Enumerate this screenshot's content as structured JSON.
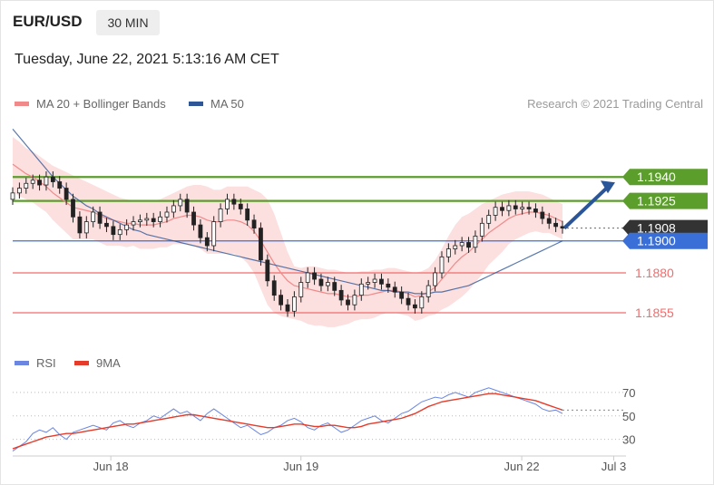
{
  "header": {
    "pair": "EUR/USD",
    "timeframe": "30 MIN"
  },
  "datetime": "Tuesday, June 22, 2021 5:13:16 AM CET",
  "legend": {
    "bollinger_label": "MA 20 + Bollinger Bands",
    "ma50_label": "MA 50",
    "credit": "Research © 2021 Trading Central"
  },
  "colors": {
    "bollinger": "#f08a8a",
    "band_fill": "#fbd9d9",
    "ma50": "#2f5797",
    "resistance": "#5c9e2c",
    "pivot": "#3b6fd8",
    "support": "#f26c6c",
    "arrow": "#2a5598",
    "rsi": "#6a86e0",
    "rsi_ma": "#e43b2a"
  },
  "chart_data": [
    {
      "type": "candlestick",
      "ylim": [
        1.1838,
        1.1977
      ],
      "xlim": [
        0,
        100
      ],
      "x_ticks": [
        {
          "label": "Jun 18",
          "x": 16
        },
        {
          "label": "Jun 19",
          "x": 47
        },
        {
          "label": "Jun 22",
          "x": 83
        },
        {
          "label": "Jul 3",
          "x": 98
        }
      ],
      "levels": [
        {
          "value": 1.194,
          "label": "1.1940",
          "kind": "resistance"
        },
        {
          "value": 1.1925,
          "label": "1.1925",
          "kind": "resistance"
        },
        {
          "value": 1.1908,
          "label": "1.1908",
          "kind": "current"
        },
        {
          "value": 1.19,
          "label": "1.1900",
          "kind": "pivot"
        },
        {
          "value": 1.188,
          "label": "1.1880",
          "kind": "support"
        },
        {
          "value": 1.1855,
          "label": "1.1855",
          "kind": "support"
        }
      ],
      "close": [
        1.193,
        1.1933,
        1.1936,
        1.1938,
        1.1935,
        1.194,
        1.1937,
        1.1933,
        1.1926,
        1.1915,
        1.1905,
        1.1912,
        1.1918,
        1.1911,
        1.1909,
        1.1904,
        1.1907,
        1.191,
        1.1912,
        1.1913,
        1.1914,
        1.1912,
        1.1915,
        1.1918,
        1.1922,
        1.1926,
        1.1918,
        1.191,
        1.1902,
        1.1897,
        1.1912,
        1.192,
        1.1926,
        1.1923,
        1.192,
        1.1913,
        1.1908,
        1.1888,
        1.1875,
        1.1866,
        1.186,
        1.1856,
        1.1865,
        1.1874,
        1.188,
        1.1876,
        1.1872,
        1.1874,
        1.1869,
        1.1863,
        1.186,
        1.1866,
        1.1873,
        1.1874,
        1.1876,
        1.1873,
        1.1871,
        1.1868,
        1.1864,
        1.186,
        1.1858,
        1.1865,
        1.1872,
        1.188,
        1.189,
        1.1895,
        1.1897,
        1.1899,
        1.1896,
        1.1903,
        1.1911,
        1.1916,
        1.1921,
        1.1919,
        1.1922,
        1.192,
        1.1921,
        1.192,
        1.1918,
        1.1914,
        1.1911,
        1.1909,
        1.1908
      ],
      "ma20": [
        1.1948,
        1.1945,
        1.1942,
        1.194,
        1.1937,
        1.1934,
        1.193,
        1.1927,
        1.1924,
        1.1921,
        1.192,
        1.1919,
        1.1918,
        1.1916,
        1.1914,
        1.1913,
        1.1912,
        1.1911,
        1.1911,
        1.191,
        1.191,
        1.191,
        1.1911,
        1.1912,
        1.1914,
        1.1915,
        1.1916,
        1.1916,
        1.1915,
        1.1913,
        1.1912,
        1.1912,
        1.1913,
        1.1913,
        1.1912,
        1.191,
        1.1906,
        1.19,
        1.1893,
        1.1886,
        1.188,
        1.1875,
        1.1872,
        1.1871,
        1.187,
        1.1869,
        1.1868,
        1.1867,
        1.1867,
        1.1866,
        1.1865,
        1.1865,
        1.1866,
        1.1866,
        1.1867,
        1.1868,
        1.1869,
        1.1869,
        1.1868,
        1.1867,
        1.1865,
        1.1866,
        1.1868,
        1.1871,
        1.1876,
        1.1881,
        1.1886,
        1.189,
        1.1893,
        1.1897,
        1.1901,
        1.1905,
        1.1908,
        1.1911,
        1.1914,
        1.1916,
        1.1917,
        1.1918,
        1.1918,
        1.1917,
        1.1916,
        1.1914,
        1.1912
      ],
      "bb_upper": [
        1.1965,
        1.1962,
        1.1958,
        1.1956,
        1.1953,
        1.195,
        1.1947,
        1.1945,
        1.1943,
        1.1941,
        1.1939,
        1.1937,
        1.1935,
        1.1933,
        1.1931,
        1.1929,
        1.1927,
        1.1926,
        1.1925,
        1.1925,
        1.1925,
        1.1925,
        1.1926,
        1.1928,
        1.193,
        1.1932,
        1.1934,
        1.1935,
        1.1935,
        1.1934,
        1.1932,
        1.1932,
        1.1934,
        1.1934,
        1.1934,
        1.1934,
        1.1932,
        1.193,
        1.1926,
        1.1917,
        1.1905,
        1.1893,
        1.1884,
        1.1883,
        1.1884,
        1.1884,
        1.1883,
        1.1882,
        1.1882,
        1.1881,
        1.188,
        1.188,
        1.1881,
        1.1881,
        1.1882,
        1.1882,
        1.1883,
        1.1883,
        1.1882,
        1.1881,
        1.188,
        1.1881,
        1.1883,
        1.1888,
        1.1895,
        1.1903,
        1.191,
        1.1915,
        1.1917,
        1.192,
        1.1923,
        1.1925,
        1.1927,
        1.1929,
        1.193,
        1.1931,
        1.1931,
        1.1931,
        1.193,
        1.1929,
        1.1927,
        1.1925,
        1.1923
      ],
      "bb_lower": [
        1.1931,
        1.1928,
        1.1926,
        1.1924,
        1.1921,
        1.1918,
        1.1913,
        1.1909,
        1.1905,
        1.1901,
        1.1901,
        1.1901,
        1.1901,
        1.1899,
        1.1897,
        1.1897,
        1.1897,
        1.1896,
        1.1897,
        1.1895,
        1.1895,
        1.1895,
        1.1896,
        1.1896,
        1.1898,
        1.1898,
        1.1898,
        1.1897,
        1.1895,
        1.1892,
        1.1892,
        1.1892,
        1.1892,
        1.1892,
        1.189,
        1.1886,
        1.188,
        1.187,
        1.186,
        1.1855,
        1.1853,
        1.1852,
        1.1851,
        1.185,
        1.1848,
        1.1847,
        1.1847,
        1.1846,
        1.1846,
        1.1847,
        1.1848,
        1.185,
        1.1851,
        1.1851,
        1.1852,
        1.1854,
        1.1855,
        1.1855,
        1.1854,
        1.1853,
        1.185,
        1.1851,
        1.1853,
        1.1854,
        1.1857,
        1.1859,
        1.1862,
        1.1865,
        1.1869,
        1.1874,
        1.1879,
        1.1885,
        1.1889,
        1.1893,
        1.1898,
        1.1901,
        1.1903,
        1.1905,
        1.1906,
        1.1905,
        1.1905,
        1.1903,
        1.1901
      ],
      "ma50": [
        1.197,
        1.1965,
        1.196,
        1.1955,
        1.195,
        1.1945,
        1.194,
        1.1936,
        1.1932,
        1.1928,
        1.1925,
        1.1922,
        1.192,
        1.1917,
        1.1915,
        1.1913,
        1.1911,
        1.1909,
        1.1907,
        1.1906,
        1.1904,
        1.1903,
        1.1902,
        1.1901,
        1.19,
        1.1899,
        1.1898,
        1.1897,
        1.1896,
        1.1895,
        1.1894,
        1.1893,
        1.1892,
        1.1891,
        1.189,
        1.1889,
        1.1888,
        1.1887,
        1.1886,
        1.1885,
        1.1884,
        1.1883,
        1.1882,
        1.1881,
        1.188,
        1.1879,
        1.1878,
        1.1877,
        1.1876,
        1.1875,
        1.1874,
        1.1873,
        1.1872,
        1.1871,
        1.187,
        1.1869,
        1.1869,
        1.1868,
        1.1868,
        1.1868,
        1.1867,
        1.1867,
        1.1867,
        1.1868,
        1.1868,
        1.1869,
        1.187,
        1.1871,
        1.1872,
        1.1874,
        1.1876,
        1.1878,
        1.188,
        1.1882,
        1.1884,
        1.1886,
        1.1888,
        1.189,
        1.1892,
        1.1894,
        1.1896,
        1.1898,
        1.19
      ],
      "forecast_target": 1.194
    },
    {
      "type": "line",
      "title": "",
      "legend": [
        "RSI",
        "9MA"
      ],
      "ylim": [
        22,
        80
      ],
      "y_ticks": [
        70,
        50,
        30
      ],
      "series": [
        {
          "name": "RSI",
          "values": [
            20,
            24,
            28,
            35,
            38,
            36,
            40,
            34,
            30,
            36,
            38,
            40,
            42,
            40,
            38,
            44,
            46,
            42,
            40,
            44,
            46,
            50,
            48,
            52,
            56,
            52,
            54,
            50,
            46,
            52,
            56,
            52,
            48,
            44,
            40,
            42,
            38,
            34,
            36,
            40,
            42,
            46,
            48,
            45,
            40,
            38,
            42,
            44,
            40,
            36,
            38,
            42,
            46,
            48,
            50,
            46,
            44,
            48,
            52,
            54,
            58,
            62,
            64,
            66,
            65,
            68,
            70,
            68,
            66,
            70,
            72,
            74,
            72,
            70,
            68,
            66,
            64,
            62,
            60,
            56,
            54,
            55,
            52
          ]
        },
        {
          "name": "9MA",
          "values": [
            22,
            24,
            26,
            28,
            30,
            32,
            33,
            34,
            35,
            35,
            36,
            37,
            38,
            39,
            40,
            41,
            42,
            43,
            43,
            44,
            45,
            46,
            47,
            48,
            49,
            50,
            51,
            51,
            50,
            49,
            48,
            47,
            46,
            45,
            44,
            43,
            42,
            41,
            40,
            40,
            41,
            42,
            43,
            43,
            42,
            41,
            41,
            42,
            42,
            41,
            40,
            40,
            41,
            43,
            44,
            45,
            46,
            47,
            48,
            50,
            52,
            55,
            58,
            60,
            62,
            63,
            64,
            65,
            66,
            67,
            68,
            69,
            69,
            68,
            67,
            66,
            65,
            64,
            63,
            61,
            59,
            57,
            55
          ]
        }
      ]
    }
  ]
}
